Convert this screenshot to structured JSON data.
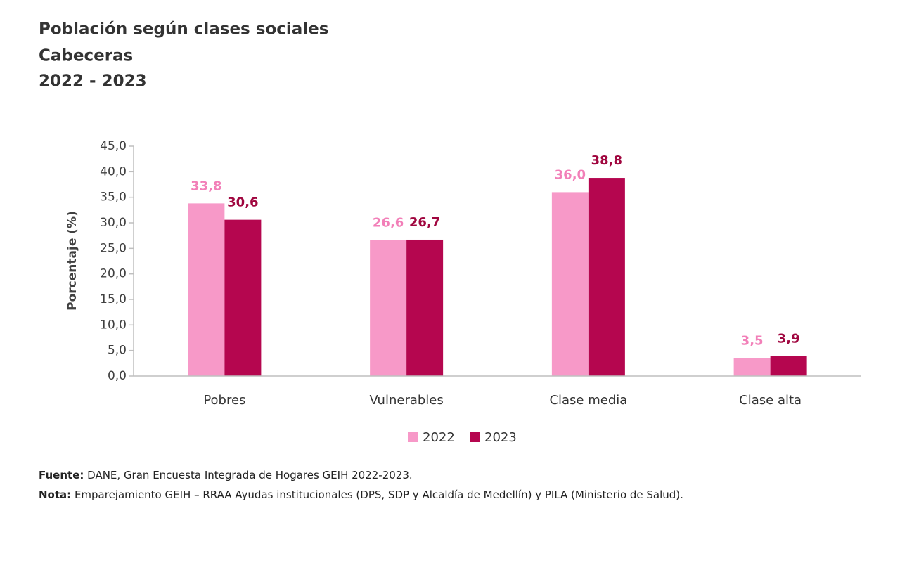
{
  "chart_data": {
    "type": "bar",
    "title": "Población según clases sociales",
    "subtitle": [
      "Cabeceras",
      "2022 - 2023"
    ],
    "y_label": "Porcentaje (%)",
    "categories": [
      "Pobres",
      "Vulnerables",
      "Clase media",
      "Clase alta"
    ],
    "series": [
      {
        "name": "2022",
        "color": "#f799c8",
        "label_color": "#f27fb8",
        "values": [
          33.8,
          26.6,
          36.0,
          3.5
        ],
        "value_labels": [
          "33,8",
          "26,6",
          "36,0",
          "3,5"
        ]
      },
      {
        "name": "2023",
        "color": "#b5064f",
        "label_color": "#a0063f",
        "values": [
          30.6,
          26.7,
          38.8,
          3.9
        ],
        "value_labels": [
          "30,6",
          "26,7",
          "38,8",
          "3,9"
        ]
      }
    ],
    "ylim": [
      0,
      45
    ],
    "yticks": [
      {
        "value": 0,
        "label": "0,0"
      },
      {
        "value": 5,
        "label": "5,0"
      },
      {
        "value": 10,
        "label": "10,0"
      },
      {
        "value": 15,
        "label": "15,0"
      },
      {
        "value": 20,
        "label": "20,0"
      },
      {
        "value": 25,
        "label": "25,0"
      },
      {
        "value": 30,
        "label": "30,0"
      },
      {
        "value": 35,
        "label": "35,0"
      },
      {
        "value": 40,
        "label": "40,0"
      },
      {
        "value": 45,
        "label": "45,0"
      }
    ],
    "grid": false,
    "legend": "bottom",
    "source": {
      "label": "Fuente:",
      "text": "DANE, Gran Encuesta Integrada de Hogares GEIH 2022-2023."
    },
    "note": {
      "label": "Nota:",
      "text": "Emparejamiento GEIH – RRAA Ayudas institucionales (DPS, SDP y Alcaldía de Medellín) y PILA (Ministerio de Salud)."
    }
  }
}
